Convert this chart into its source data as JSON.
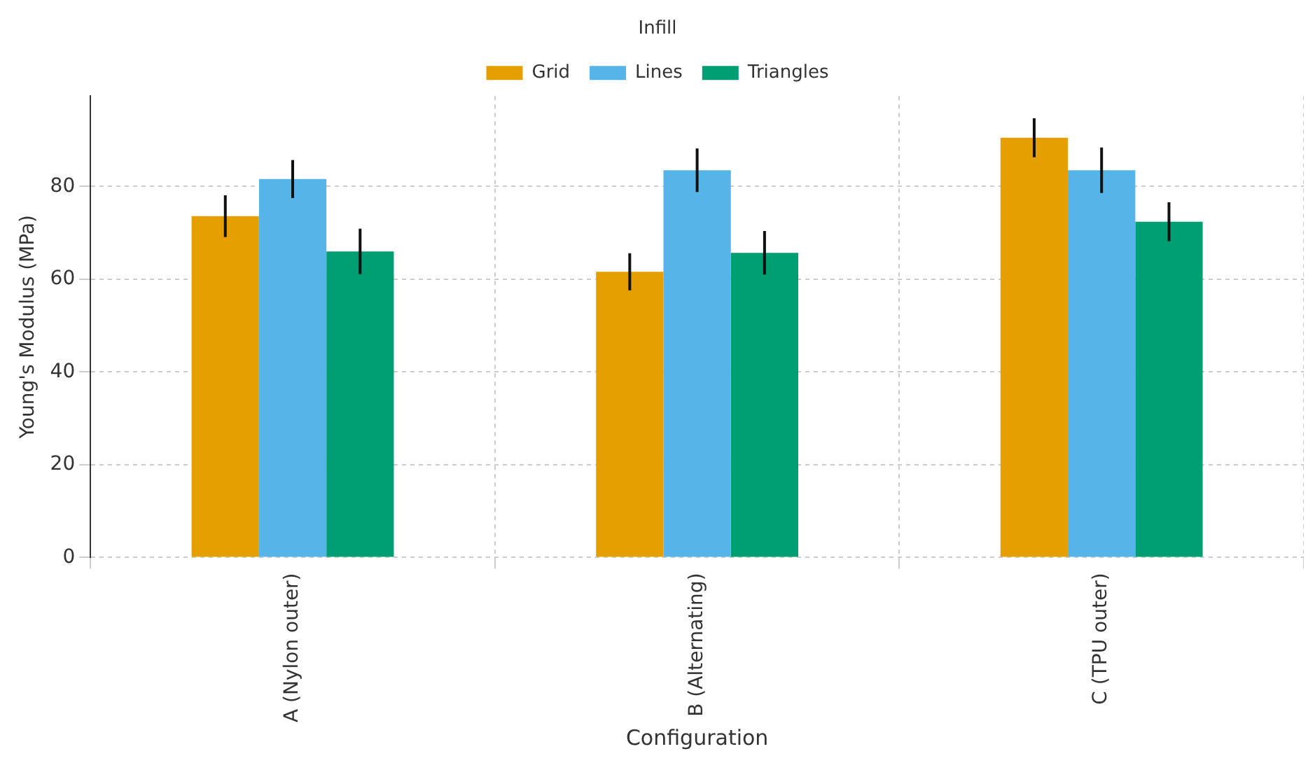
{
  "chart_data": {
    "type": "bar",
    "xlabel": "Configuration",
    "ylabel": "Young's Modulus (MPa)",
    "legend_title": "Infill",
    "categories": [
      "A (Nylon outer)",
      "B (Alternating)",
      "C (TPU outer)"
    ],
    "series": [
      {
        "name": "Grid",
        "color": "#e69f00",
        "values": [
          73.6,
          61.6,
          90.5
        ],
        "errors": [
          4.5,
          4.0,
          4.2
        ]
      },
      {
        "name": "Lines",
        "color": "#56b4e9",
        "values": [
          81.6,
          83.5,
          83.5
        ],
        "errors": [
          4.1,
          4.7,
          4.9
        ]
      },
      {
        "name": "Triangles",
        "color": "#009e73",
        "values": [
          66.0,
          65.7,
          72.4
        ],
        "errors": [
          4.9,
          4.7,
          4.2
        ]
      }
    ],
    "ylim": [
      0,
      99.5
    ],
    "yticks": [
      0,
      20,
      40,
      60,
      80
    ],
    "grid": true,
    "legend": "top"
  }
}
